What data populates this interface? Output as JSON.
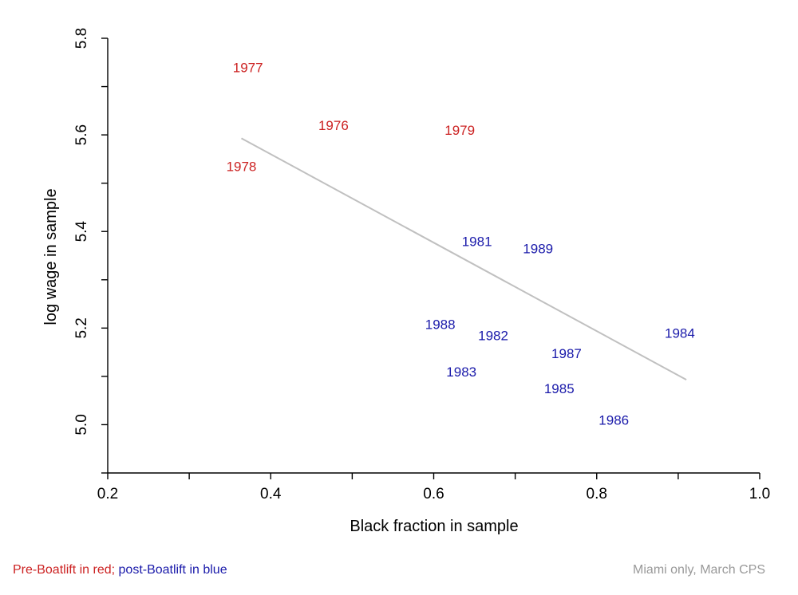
{
  "chart_data": {
    "type": "scatter",
    "xlabel": "Black fraction in sample",
    "ylabel": "log wage in sample",
    "xlim": [
      0.2,
      1.0
    ],
    "ylim": [
      4.9,
      5.8
    ],
    "x_ticks": [
      0.2,
      0.3,
      0.4,
      0.5,
      0.6,
      0.7,
      0.8,
      0.9,
      1.0
    ],
    "x_tick_labels": [
      "0.2",
      "0.4",
      "0.6",
      "0.8",
      "1.0"
    ],
    "x_tick_label_values": [
      0.2,
      0.4,
      0.6,
      0.8,
      1.0
    ],
    "y_ticks": [
      4.9,
      5.0,
      5.1,
      5.2,
      5.3,
      5.4,
      5.5,
      5.6,
      5.7,
      5.8
    ],
    "y_tick_labels": [
      "5.0",
      "5.2",
      "5.4",
      "5.6",
      "5.8"
    ],
    "y_tick_label_values": [
      5.0,
      5.2,
      5.4,
      5.6,
      5.8
    ],
    "grid": false,
    "colors": {
      "pre": "#cc2222",
      "post": "#1a1aaa",
      "fit": "#c0c0c0"
    },
    "points": [
      {
        "label": "1976",
        "x": 0.477,
        "y": 5.62,
        "group": "pre"
      },
      {
        "label": "1977",
        "x": 0.372,
        "y": 5.74,
        "group": "pre"
      },
      {
        "label": "1978",
        "x": 0.364,
        "y": 5.535,
        "group": "pre"
      },
      {
        "label": "1979",
        "x": 0.632,
        "y": 5.61,
        "group": "pre"
      },
      {
        "label": "1981",
        "x": 0.653,
        "y": 5.38,
        "group": "post"
      },
      {
        "label": "1982",
        "x": 0.673,
        "y": 5.185,
        "group": "post"
      },
      {
        "label": "1983",
        "x": 0.634,
        "y": 5.11,
        "group": "post"
      },
      {
        "label": "1984",
        "x": 0.902,
        "y": 5.19,
        "group": "post"
      },
      {
        "label": "1985",
        "x": 0.754,
        "y": 5.075,
        "group": "post"
      },
      {
        "label": "1986",
        "x": 0.821,
        "y": 5.01,
        "group": "post"
      },
      {
        "label": "1987",
        "x": 0.763,
        "y": 5.148,
        "group": "post"
      },
      {
        "label": "1988",
        "x": 0.608,
        "y": 5.208,
        "group": "post"
      },
      {
        "label": "1989",
        "x": 0.728,
        "y": 5.365,
        "group": "post"
      }
    ],
    "fit_line": {
      "x": [
        0.364,
        0.91
      ],
      "y": [
        5.593,
        5.093
      ]
    }
  },
  "notes": {
    "pre_text": "Pre-Boatlift in red;",
    "post_text": "post-Boatlift in blue",
    "source": "Miami only, March CPS"
  }
}
